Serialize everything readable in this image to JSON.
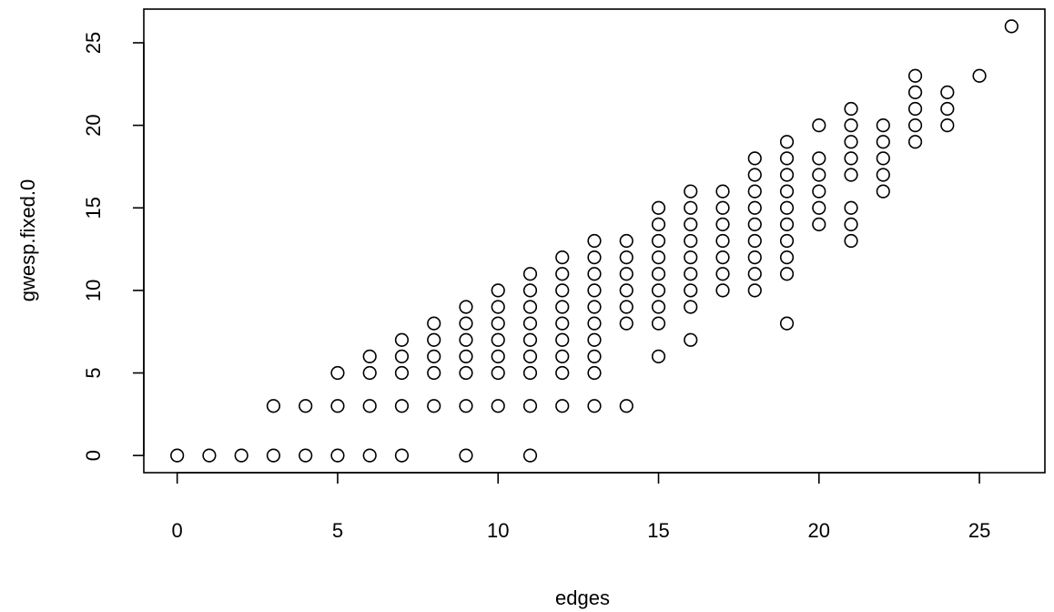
{
  "chart_data": {
    "type": "scatter",
    "title": "",
    "xlabel": "edges",
    "ylabel": "gwesp.fixed.0",
    "xlim": [
      -1.04,
      27.04
    ],
    "ylim": [
      -1.04,
      27.04
    ],
    "x_ticks": [
      0,
      5,
      10,
      15,
      20,
      25
    ],
    "y_ticks": [
      0,
      5,
      10,
      15,
      20,
      25
    ],
    "x_tick_labels": [
      "0",
      "5",
      "10",
      "15",
      "20",
      "25"
    ],
    "y_tick_labels": [
      "0",
      "5",
      "10",
      "15",
      "20",
      "25"
    ],
    "grid": false,
    "legend": "none",
    "marker": "open-circle",
    "color": "#000000",
    "points": {
      "0": [
        0
      ],
      "1": [
        0
      ],
      "2": [
        0
      ],
      "3": [
        0,
        3
      ],
      "4": [
        0,
        3
      ],
      "5": [
        0,
        3,
        5
      ],
      "6": [
        0,
        3,
        5,
        6
      ],
      "7": [
        0,
        3,
        5,
        6,
        7
      ],
      "8": [
        3,
        5,
        6,
        7,
        8
      ],
      "9": [
        0,
        3,
        5,
        6,
        7,
        8,
        9
      ],
      "10": [
        3,
        5,
        6,
        7,
        8,
        9,
        10
      ],
      "11": [
        0,
        3,
        5,
        6,
        7,
        8,
        9,
        10,
        11
      ],
      "12": [
        3,
        5,
        6,
        7,
        8,
        9,
        10,
        11,
        12
      ],
      "13": [
        3,
        5,
        6,
        7,
        8,
        9,
        10,
        11,
        12,
        13
      ],
      "14": [
        3,
        8,
        9,
        10,
        11,
        12,
        13
      ],
      "15": [
        6,
        8,
        9,
        10,
        11,
        12,
        13,
        14,
        15
      ],
      "16": [
        7,
        9,
        10,
        11,
        12,
        13,
        14,
        15,
        16
      ],
      "17": [
        10,
        11,
        12,
        13,
        14,
        15,
        16
      ],
      "18": [
        10,
        11,
        12,
        13,
        14,
        15,
        16,
        17,
        18
      ],
      "19": [
        8,
        11,
        12,
        13,
        14,
        15,
        16,
        17,
        18,
        19
      ],
      "20": [
        14,
        15,
        16,
        17,
        18,
        20
      ],
      "21": [
        13,
        14,
        15,
        17,
        18,
        19,
        20,
        21
      ],
      "22": [
        16,
        17,
        18,
        19,
        20
      ],
      "23": [
        19,
        20,
        21,
        22,
        23
      ],
      "24": [
        20,
        21,
        22
      ],
      "25": [
        23
      ],
      "26": [
        26
      ]
    }
  }
}
